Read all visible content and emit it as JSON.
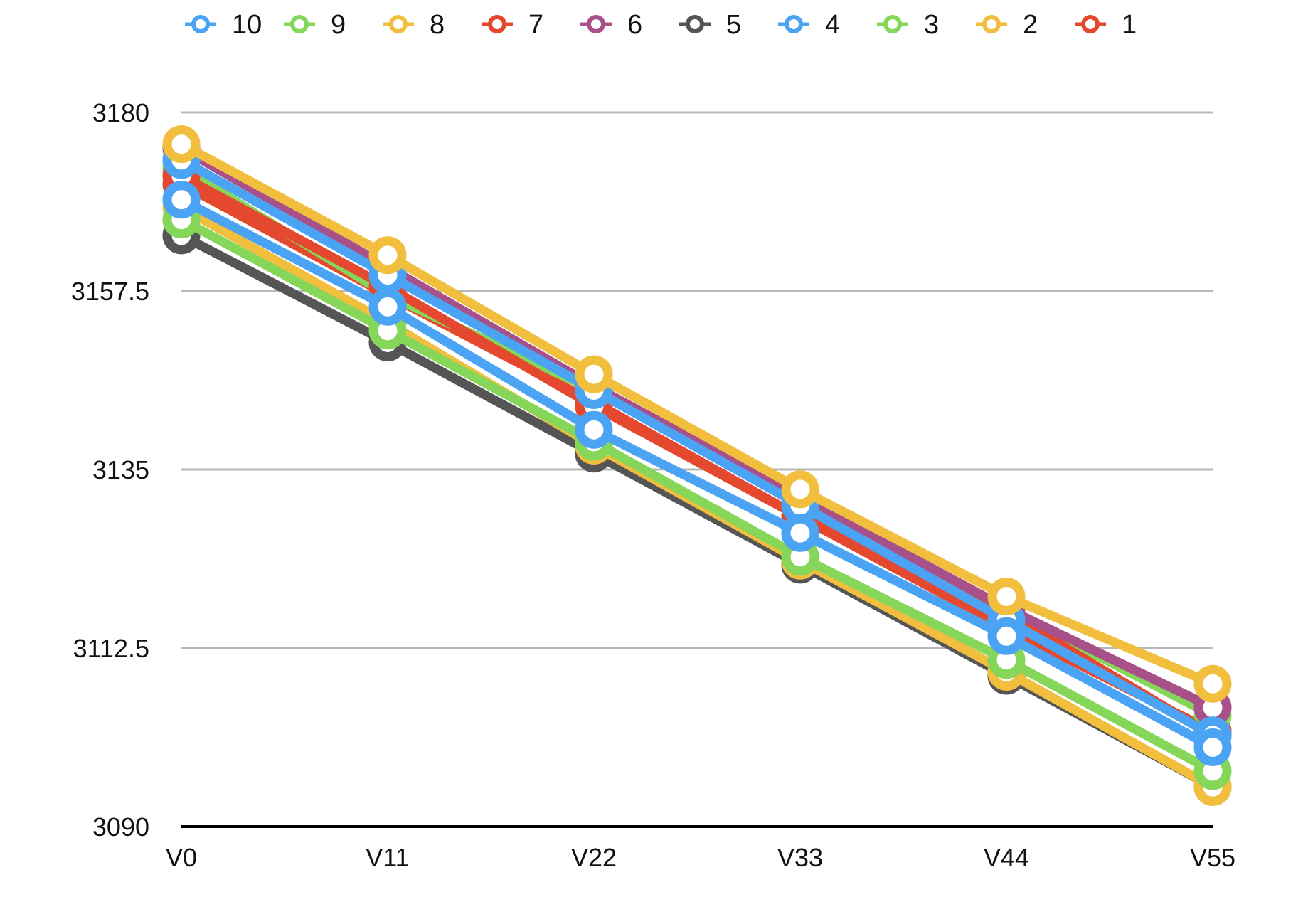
{
  "chart_data": {
    "type": "line",
    "categories": [
      "V0",
      "V11",
      "V22",
      "V33",
      "V44",
      "V55"
    ],
    "y_ticks": [
      "3180",
      "3157.5",
      "3135",
      "3112.5",
      "3090"
    ],
    "ylim": [
      3090,
      3180
    ],
    "grid": true,
    "legend_position": "top",
    "series": [
      {
        "name": "10",
        "color": "#4BA3F4",
        "values": [
          3174.0,
          3159.5,
          3145.0,
          3130.5,
          3116.0,
          3101.5
        ]
      },
      {
        "name": "9",
        "color": "#86D65A",
        "values": [
          3166.5,
          3152.5,
          3138.5,
          3124.0,
          3111.0,
          3097.0
        ]
      },
      {
        "name": "8",
        "color": "#F2BE3E",
        "values": [
          3176.0,
          3162.0,
          3147.0,
          3132.5,
          3119.0,
          3108.0
        ]
      },
      {
        "name": "7",
        "color": "#E4482E",
        "values": [
          3172.0,
          3158.0,
          3143.0,
          3129.0,
          3117.0,
          3101.5
        ]
      },
      {
        "name": "6",
        "color": "#A8508A",
        "values": [
          3175.5,
          3160.5,
          3145.5,
          3131.5,
          3117.5,
          3105.0
        ]
      },
      {
        "name": "5",
        "color": "#555555",
        "values": [
          3164.5,
          3151.0,
          3137.0,
          3123.0,
          3109.0,
          3095.0
        ]
      },
      {
        "name": "4",
        "color": "#4BA3F4",
        "values": [
          3169.0,
          3155.5,
          3140.0,
          3127.0,
          3114.0,
          3100.0
        ]
      },
      {
        "name": "3",
        "color": "#86D65A",
        "values": [
          3173.0,
          3157.0,
          3145.0,
          3131.0,
          3117.5,
          3104.0
        ]
      },
      {
        "name": "2",
        "color": "#F2BE3E",
        "values": [
          3168.0,
          3153.5,
          3138.0,
          3123.5,
          3109.5,
          3095.0
        ]
      },
      {
        "name": "1",
        "color": "#E4482E",
        "values": [
          3171.0,
          3157.0,
          3143.5,
          3129.0,
          3115.0,
          3102.0
        ]
      }
    ],
    "draw_order": [
      5,
      9,
      8,
      1,
      7,
      3,
      4,
      0,
      2,
      6
    ],
    "highlight_rings": [
      {
        "series": 8,
        "point": 0
      },
      {
        "series": 8,
        "point": 1
      },
      {
        "series": 8,
        "point": 2
      },
      {
        "series": 8,
        "point": 3
      },
      {
        "series": 8,
        "point": 4
      },
      {
        "series": 8,
        "point": 5
      },
      {
        "series": 2,
        "point": 1
      },
      {
        "series": 2,
        "point": 2
      },
      {
        "series": 2,
        "point": 3
      },
      {
        "series": 2,
        "point": 4
      },
      {
        "series": 2,
        "point": 5
      },
      {
        "series": 6,
        "point": 0
      },
      {
        "series": 6,
        "point": 1
      },
      {
        "series": 6,
        "point": 2
      },
      {
        "series": 6,
        "point": 3
      },
      {
        "series": 6,
        "point": 4
      },
      {
        "series": 7,
        "point": 0
      },
      {
        "series": 7,
        "point": 1
      },
      {
        "series": 7,
        "point": 2
      },
      {
        "series": 7,
        "point": 3
      },
      {
        "series": 7,
        "point": 4
      },
      {
        "series": 7,
        "point": 5
      },
      {
        "series": 6,
        "point": 0
      },
      {
        "series": 0,
        "point": 0
      },
      {
        "series": 6,
        "point": 0
      },
      {
        "series": 7,
        "point": 0
      },
      {
        "series": 6,
        "point": 1
      },
      {
        "series": 7,
        "point": 1
      },
      {
        "series": 6,
        "point": 2
      },
      {
        "series": 7,
        "point": 2
      },
      {
        "series": 6,
        "point": 3
      },
      {
        "series": 7,
        "point": 3
      },
      {
        "series": 6,
        "point": 4
      },
      {
        "series": 7,
        "point": 4
      },
      {
        "series": 6,
        "point": 5
      },
      {
        "series": 7,
        "point": 5
      }
    ]
  }
}
